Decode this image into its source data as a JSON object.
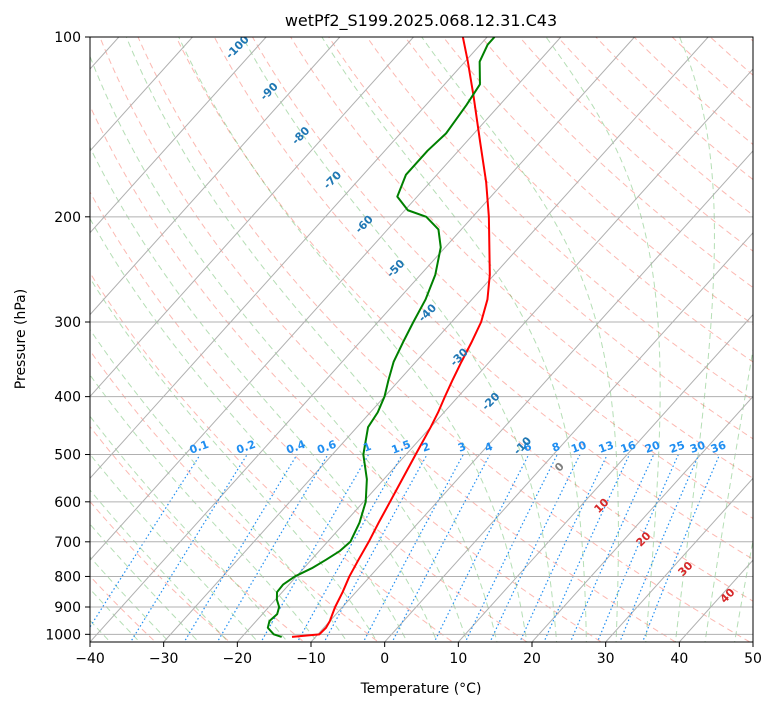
{
  "chart_data": {
    "type": "line",
    "title": "wetPf2_S199.2025.068.12.31.C43",
    "xlabel": "Temperature (°C)",
    "ylabel": "Pressure (hPa)",
    "xlim": [
      -40,
      50
    ],
    "ylim": [
      1030,
      100
    ],
    "y_scale": "log",
    "grid": true,
    "x_ticks": [
      "−40",
      "−30",
      "−20",
      "−10",
      "0",
      "10",
      "20",
      "30",
      "40",
      "50"
    ],
    "x_tick_values": [
      -40,
      -30,
      -20,
      -10,
      0,
      10,
      20,
      30,
      40,
      50
    ],
    "y_ticks": [
      "100",
      "200",
      "300",
      "400",
      "500",
      "600",
      "700",
      "800",
      "900",
      "1000"
    ],
    "y_tick_values": [
      100,
      200,
      300,
      400,
      500,
      600,
      700,
      800,
      900,
      1000
    ],
    "series": [
      {
        "color": "#ff0000",
        "points": [
          [
            1010,
            -13.2
          ],
          [
            1000,
            -9.8
          ],
          [
            975,
            -9.7
          ],
          [
            950,
            -10.0
          ],
          [
            925,
            -10.5
          ],
          [
            900,
            -11.0
          ],
          [
            850,
            -11.8
          ],
          [
            800,
            -12.8
          ],
          [
            750,
            -13.6
          ],
          [
            700,
            -14.4
          ],
          [
            650,
            -15.4
          ],
          [
            600,
            -16.4
          ],
          [
            550,
            -17.5
          ],
          [
            500,
            -18.7
          ],
          [
            450,
            -20.0
          ],
          [
            425,
            -20.8
          ],
          [
            400,
            -21.8
          ],
          [
            375,
            -22.8
          ],
          [
            350,
            -23.8
          ],
          [
            325,
            -24.8
          ],
          [
            300,
            -26.0
          ],
          [
            275,
            -27.9
          ],
          [
            250,
            -30.6
          ],
          [
            225,
            -34.0
          ],
          [
            200,
            -37.8
          ],
          [
            175,
            -42.4
          ],
          [
            150,
            -48.1
          ],
          [
            125,
            -54.8
          ],
          [
            110,
            -59.6
          ],
          [
            100,
            -63.3
          ]
        ]
      },
      {
        "color": "#008000",
        "points": [
          [
            1010,
            -14.6
          ],
          [
            1000,
            -16.0
          ],
          [
            975,
            -17.6
          ],
          [
            950,
            -18.2
          ],
          [
            925,
            -18.0
          ],
          [
            900,
            -18.6
          ],
          [
            875,
            -19.8
          ],
          [
            850,
            -20.7
          ],
          [
            825,
            -20.8
          ],
          [
            800,
            -20.2
          ],
          [
            775,
            -18.9
          ],
          [
            750,
            -18.0
          ],
          [
            725,
            -17.2
          ],
          [
            700,
            -16.9
          ],
          [
            650,
            -18.0
          ],
          [
            600,
            -19.7
          ],
          [
            550,
            -22.3
          ],
          [
            500,
            -25.8
          ],
          [
            450,
            -28.5
          ],
          [
            425,
            -29.0
          ],
          [
            400,
            -30.0
          ],
          [
            375,
            -31.5
          ],
          [
            350,
            -33.0
          ],
          [
            325,
            -34.1
          ],
          [
            300,
            -35.2
          ],
          [
            275,
            -36.3
          ],
          [
            250,
            -38.0
          ],
          [
            225,
            -40.6
          ],
          [
            210,
            -43.1
          ],
          [
            200,
            -46.3
          ],
          [
            195,
            -49.6
          ],
          [
            185,
            -52.7
          ],
          [
            170,
            -54.2
          ],
          [
            155,
            -54.2
          ],
          [
            145,
            -53.8
          ],
          [
            130,
            -54.5
          ],
          [
            120,
            -55.2
          ],
          [
            110,
            -58.0
          ],
          [
            103,
            -59.0
          ],
          [
            100,
            -59.0
          ]
        ]
      }
    ],
    "dry_adiabat_labels": [
      "-100",
      "-90",
      "-80",
      "-70",
      "-60",
      "-50",
      "-40",
      "-30",
      "-20",
      "-10"
    ],
    "moist_adiabat_labels": [
      "0",
      "10",
      "20",
      "30",
      "40"
    ],
    "mixing_ratio_labels": [
      "0.1",
      "0.2",
      "0.4",
      "0.6",
      "1",
      "1.5",
      "2",
      "3",
      "4",
      "6",
      "8",
      "10",
      "13",
      "16",
      "20",
      "25",
      "30",
      "36"
    ],
    "colors": {
      "temperature": "#ff0000",
      "dewpoint": "#008000",
      "isotherm": "#b0b0b0",
      "dry_adiabat": "#fa8072",
      "moist_adiabat": "#2ca02c",
      "mixing_ratio": "#1f8ef1",
      "dry_adiabat_label": "#1f77b4",
      "moist_adiabat_label": "#d62728"
    }
  }
}
